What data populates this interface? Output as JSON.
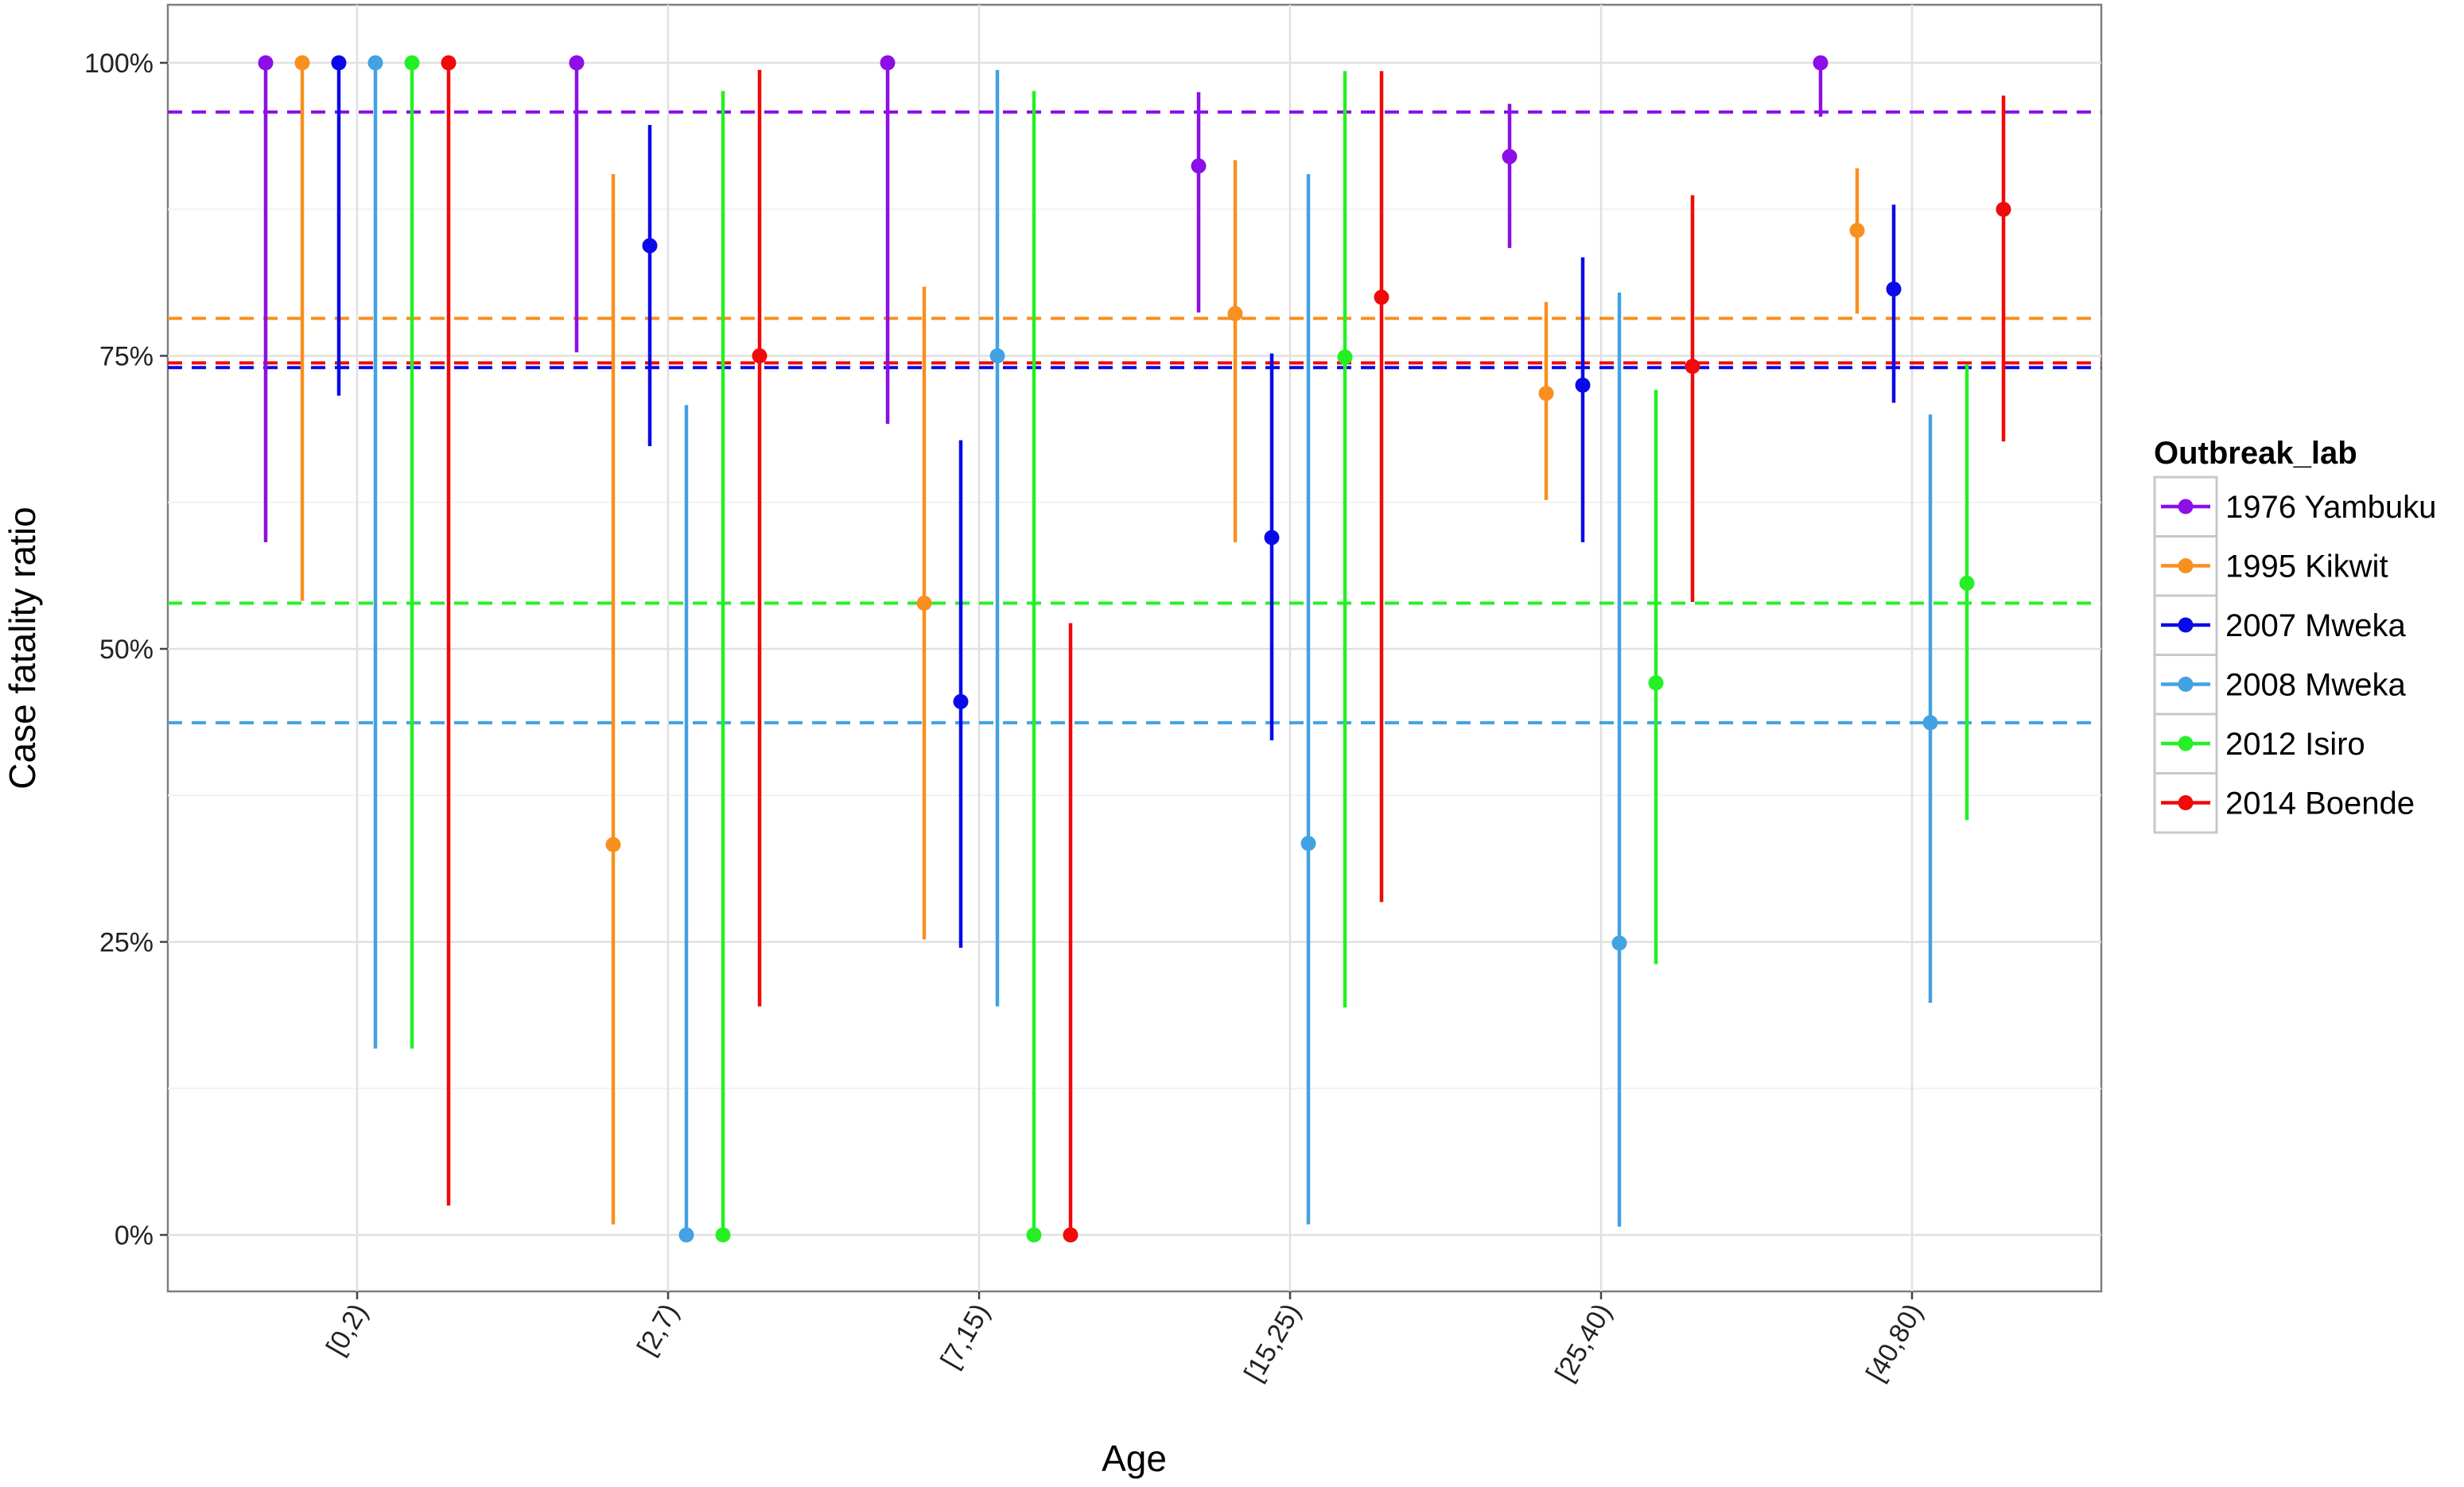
{
  "chart_data": {
    "type": "scatter",
    "subtype": "pointrange with dashed reference lines",
    "title": "",
    "xlabel": "Age",
    "ylabel": "Case fatality ratio",
    "categories": [
      "[0,2)",
      "[2,7)",
      "[7,15)",
      "[15,25)",
      "[25,40)",
      "[40,80)"
    ],
    "yticks": [
      0,
      25,
      50,
      75,
      100
    ],
    "ytick_labels": [
      "0%",
      "25%",
      "50%",
      "75%",
      "100%"
    ],
    "ylim": [
      -5,
      105
    ],
    "grid": true,
    "legend": {
      "title": "Outbreak_lab",
      "placement": "right"
    },
    "series": [
      {
        "name": "1976 Yambuku",
        "color": "#8B0FE6",
        "overall": 95.8,
        "values": [
          100,
          100,
          100,
          91.2,
          92.0,
          100
        ],
        "lower": [
          59.1,
          75.3,
          69.2,
          78.7,
          84.2,
          95.4
        ],
        "upper": [
          100,
          100,
          100,
          97.5,
          96.5,
          100
        ]
      },
      {
        "name": "1995 Kikwit",
        "color": "#F7901E",
        "overall": 78.2,
        "values": [
          100,
          33.3,
          53.9,
          78.6,
          71.8,
          85.7
        ],
        "lower": [
          54.1,
          0.9,
          25.2,
          59.1,
          62.7,
          78.6
        ],
        "upper": [
          100,
          90.5,
          80.9,
          91.7,
          79.6,
          91.0
        ]
      },
      {
        "name": "2007 Mweka",
        "color": "#0A0AE8",
        "overall": 74.0,
        "values": [
          100,
          84.4,
          45.5,
          59.5,
          72.5,
          80.7
        ],
        "lower": [
          71.6,
          67.3,
          24.5,
          42.2,
          59.1,
          71.0
        ],
        "upper": [
          100,
          94.7,
          67.8,
          75.2,
          83.4,
          87.9
        ]
      },
      {
        "name": "2008 Mweka",
        "color": "#42A2E2",
        "overall": 43.7,
        "values": [
          100,
          0,
          75,
          33.4,
          24.9,
          43.7
        ],
        "lower": [
          15.9,
          0,
          19.5,
          0.9,
          0.7,
          19.8
        ],
        "upper": [
          100,
          70.8,
          99.4,
          90.5,
          80.4,
          70.0
        ]
      },
      {
        "name": "2012 Isiro",
        "color": "#25F025",
        "overall": 53.9,
        "values": [
          100,
          0,
          0,
          74.9,
          47.1,
          55.6
        ],
        "lower": [
          15.9,
          0,
          0,
          19.4,
          23.1,
          35.4
        ],
        "upper": [
          100,
          97.6,
          97.6,
          99.3,
          72.1,
          74.3
        ]
      },
      {
        "name": "2014 Boende",
        "color": "#F00A0A",
        "overall": 74.4,
        "values": [
          100,
          75,
          0,
          80.0,
          74.1,
          87.5
        ],
        "lower": [
          2.5,
          19.5,
          0,
          28.4,
          54.0,
          67.7
        ],
        "upper": [
          100,
          99.4,
          52.2,
          99.3,
          88.7,
          97.2
        ]
      }
    ]
  }
}
